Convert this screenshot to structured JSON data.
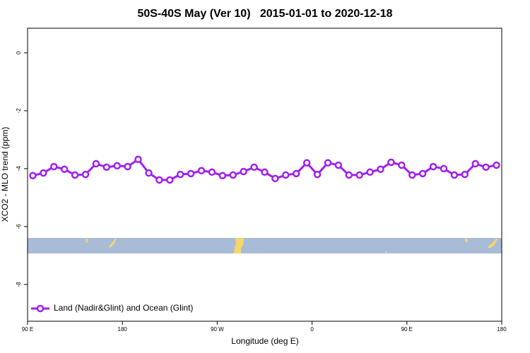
{
  "chart_data": {
    "type": "line",
    "title": "50S-40S May (Ver 10)   2015-01-01 to 2020-12-18",
    "x_label": "Longitude (deg E)",
    "y_label": "XCO2 - MLO trend (ppm)",
    "xlim": [
      90,
      540
    ],
    "ylim": [
      -9.27,
      0.85
    ],
    "xticks": [
      {
        "value": 90,
        "label": "90 E"
      },
      {
        "value": 180,
        "label": "180"
      },
      {
        "value": 270,
        "label": "90 W"
      },
      {
        "value": 360,
        "label": "0"
      },
      {
        "value": 450,
        "label": "90 E"
      },
      {
        "value": 540,
        "label": "180"
      }
    ],
    "yticks": [
      0,
      -2,
      -4,
      -6,
      -8
    ],
    "legend": "bottom-left",
    "series": [
      {
        "name": "Land (Nadir&Glint) and Ocean (Glint)",
        "color": "#a020f0",
        "x": [
          95,
          105,
          115,
          125,
          135,
          145,
          155,
          165,
          175,
          185,
          195,
          205,
          215,
          225,
          235,
          245,
          255,
          265,
          275,
          285,
          295,
          305,
          315,
          325,
          335,
          345,
          355,
          365,
          375,
          385,
          395,
          405,
          415,
          425,
          435,
          445,
          455,
          465,
          475,
          485,
          495,
          505,
          515,
          525,
          535
        ],
        "values": [
          -4.24,
          -4.15,
          -3.93,
          -4.02,
          -4.22,
          -4.2,
          -3.83,
          -3.95,
          -3.9,
          -3.93,
          -3.68,
          -4.15,
          -4.39,
          -4.39,
          -4.2,
          -4.17,
          -4.07,
          -4.12,
          -4.24,
          -4.22,
          -4.1,
          -3.95,
          -4.12,
          -4.34,
          -4.22,
          -4.17,
          -3.8,
          -4.2,
          -3.8,
          -3.88,
          -4.22,
          -4.22,
          -4.12,
          -4.02,
          -3.78,
          -3.88,
          -4.22,
          -4.17,
          -3.93,
          -4.0,
          -4.22,
          -4.2,
          -3.83,
          -3.95,
          -3.88
        ]
      }
    ]
  }
}
